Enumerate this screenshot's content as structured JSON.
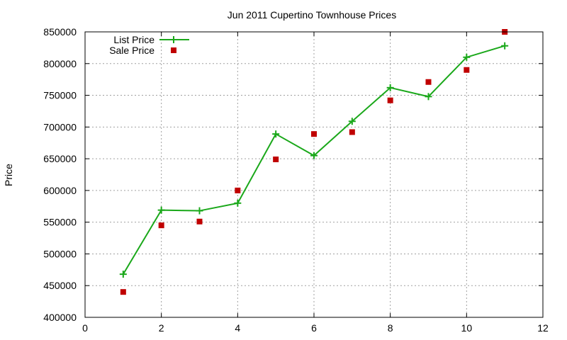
{
  "chart_data": {
    "type": "line",
    "title": "Jun 2011 Cupertino Townhouse Prices",
    "xlabel": "",
    "ylabel": "Price",
    "xlim": [
      0,
      12
    ],
    "ylim": [
      400000,
      850000
    ],
    "x_ticks": [
      0,
      2,
      4,
      6,
      8,
      10,
      12
    ],
    "y_ticks": [
      400000,
      450000,
      500000,
      550000,
      600000,
      650000,
      700000,
      750000,
      800000,
      850000
    ],
    "grid": true,
    "legend_position": "top-left",
    "series": [
      {
        "name": "List Price",
        "style": "line-with-plus-markers",
        "color": "#1aa81a",
        "points": [
          [
            1,
            468000
          ],
          [
            2,
            569000
          ],
          [
            3,
            568000
          ],
          [
            4,
            580000
          ],
          [
            5,
            689000
          ],
          [
            6,
            655000
          ],
          [
            7,
            709000
          ],
          [
            8,
            762000
          ],
          [
            9,
            748000
          ],
          [
            10,
            810000
          ],
          [
            11,
            828000
          ]
        ]
      },
      {
        "name": "Sale Price",
        "style": "square-markers",
        "color": "#c00000",
        "points": [
          [
            1,
            440000
          ],
          [
            2,
            545000
          ],
          [
            3,
            551000
          ],
          [
            4,
            600000
          ],
          [
            5,
            649000
          ],
          [
            6,
            689000
          ],
          [
            7,
            692000
          ],
          [
            8,
            742000
          ],
          [
            9,
            771000
          ],
          [
            10,
            790000
          ],
          [
            11,
            850000
          ]
        ]
      }
    ]
  }
}
